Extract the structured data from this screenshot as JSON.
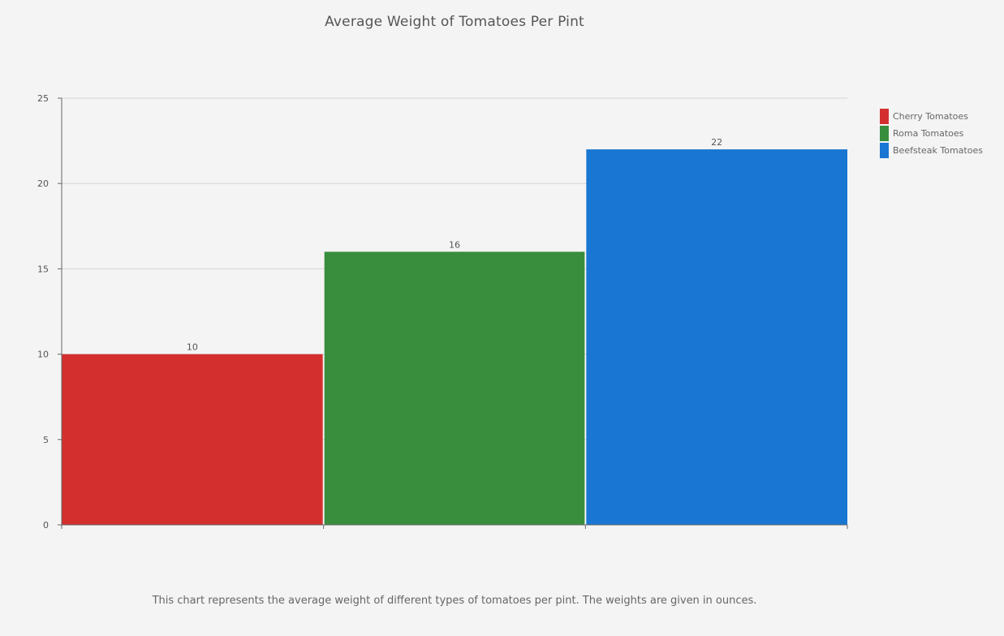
{
  "title": "Average Weight of Tomatoes Per Pint",
  "caption": "This chart represents the average weight of different types of tomatoes per pint. The weights are given in ounces.",
  "legend": [
    {
      "label": "Cherry Tomatoes",
      "color": "#d32f2f"
    },
    {
      "label": "Roma Tomatoes",
      "color": "#388e3c"
    },
    {
      "label": "Beefsteak Tomatoes",
      "color": "#1976d2"
    }
  ],
  "chart_data": {
    "type": "bar",
    "title": "Average Weight of Tomatoes Per Pint",
    "categories": [
      "Cherry Tomatoes",
      "Roma Tomatoes",
      "Beefsteak Tomatoes"
    ],
    "values": [
      10,
      16,
      22
    ],
    "colors": [
      "#d32f2f",
      "#388e3c",
      "#1976d2"
    ],
    "data_labels": [
      "10",
      "16",
      "22"
    ],
    "xlabel": "",
    "ylabel": "",
    "ylim": [
      0,
      25
    ],
    "yticks": [
      0,
      5,
      10,
      15,
      20,
      25
    ],
    "grid": true,
    "legend_position": "right"
  }
}
